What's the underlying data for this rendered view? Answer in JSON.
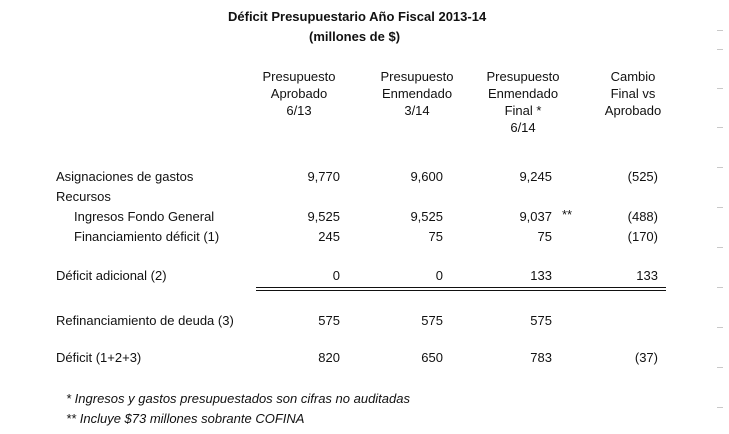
{
  "title": "Déficit Presupuestario  Año Fiscal 2013-14",
  "subtitle": "(millones de $)",
  "columns": [
    [
      "Presupuesto",
      "Aprobado",
      "6/13"
    ],
    [
      "Presupuesto",
      "Enmendado",
      "3/14"
    ],
    [
      "Presupuesto",
      "Enmendado",
      "Final *",
      "6/14"
    ],
    [
      "Cambio",
      "Final vs",
      "Aprobado"
    ]
  ],
  "rows": [
    {
      "label": "Asignaciones de gastos",
      "c1": "9,770",
      "c2": "9,600",
      "c3": "9,245",
      "c4": "(525)"
    },
    {
      "label": "Recursos"
    },
    {
      "label": "Ingresos Fondo General",
      "c1": "9,525",
      "c2": "9,525",
      "c3": "9,037",
      "mark": "**",
      "c4": "(488)"
    },
    {
      "label": "Financiamiento déficit (1)",
      "c1": "245",
      "c2": "75",
      "c3": "75",
      "c4": "(170)"
    },
    {
      "label": "Déficit adicional (2)",
      "c1": "0",
      "c2": "0",
      "c3": "133",
      "c4": "133"
    },
    {
      "label": "Refinanciamiento de deuda (3)",
      "c1": "575",
      "c2": "575",
      "c3": "575",
      "c4": ""
    },
    {
      "label": "Déficit (1+2+3)",
      "c1": "820",
      "c2": "650",
      "c3": "783",
      "c4": "(37)"
    }
  ],
  "footnotes": [
    "* Ingresos y gastos presupuestados son cifras no auditadas",
    "** Incluye $73 millones sobrante COFINA"
  ]
}
